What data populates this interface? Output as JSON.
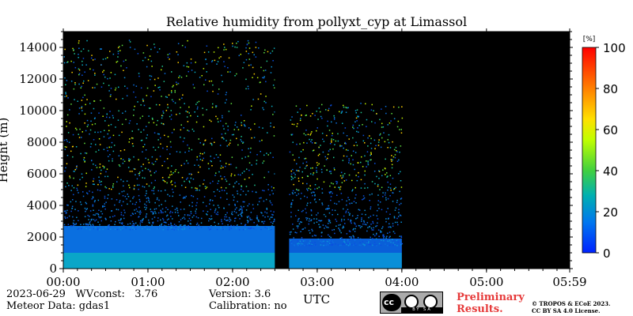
{
  "chart_data": {
    "type": "heatmap",
    "title": "Relative humidity from pollyxt_cyp at Limassol",
    "xlabel": "UTC",
    "ylabel": "Height (m)",
    "x_ticks": [
      "00:00",
      "01:00",
      "02:00",
      "03:00",
      "04:00",
      "05:00",
      "05:59"
    ],
    "y_ticks": [
      "0",
      "2000",
      "4000",
      "6000",
      "8000",
      "10000",
      "12000",
      "14000"
    ],
    "ylim": [
      0,
      15000
    ],
    "colorbar": {
      "unit": "[%]",
      "range": [
        0,
        100
      ],
      "ticks": [
        "0",
        "20",
        "40",
        "60",
        "80",
        "100"
      ],
      "colormap": "jet"
    },
    "data_gap_utc": [
      "02:30",
      "02:40"
    ],
    "data_end_utc": "04:00",
    "background_color": "#000000"
  },
  "footer": {
    "date": "2023-06-29",
    "wvconst_label": "WVconst:",
    "wvconst_value": "3.76",
    "meteor_data": "Meteor Data: gdas1",
    "version": "Version: 3.6",
    "calibration": "Calibration: no",
    "preliminary_line1": "Preliminary",
    "preliminary_line2": "Results.",
    "copyright_line1": "© TROPOS & ECoE 2023.",
    "copyright_line2": "CC BY SA 4.0 License.",
    "license_badge": "BY   SA"
  }
}
